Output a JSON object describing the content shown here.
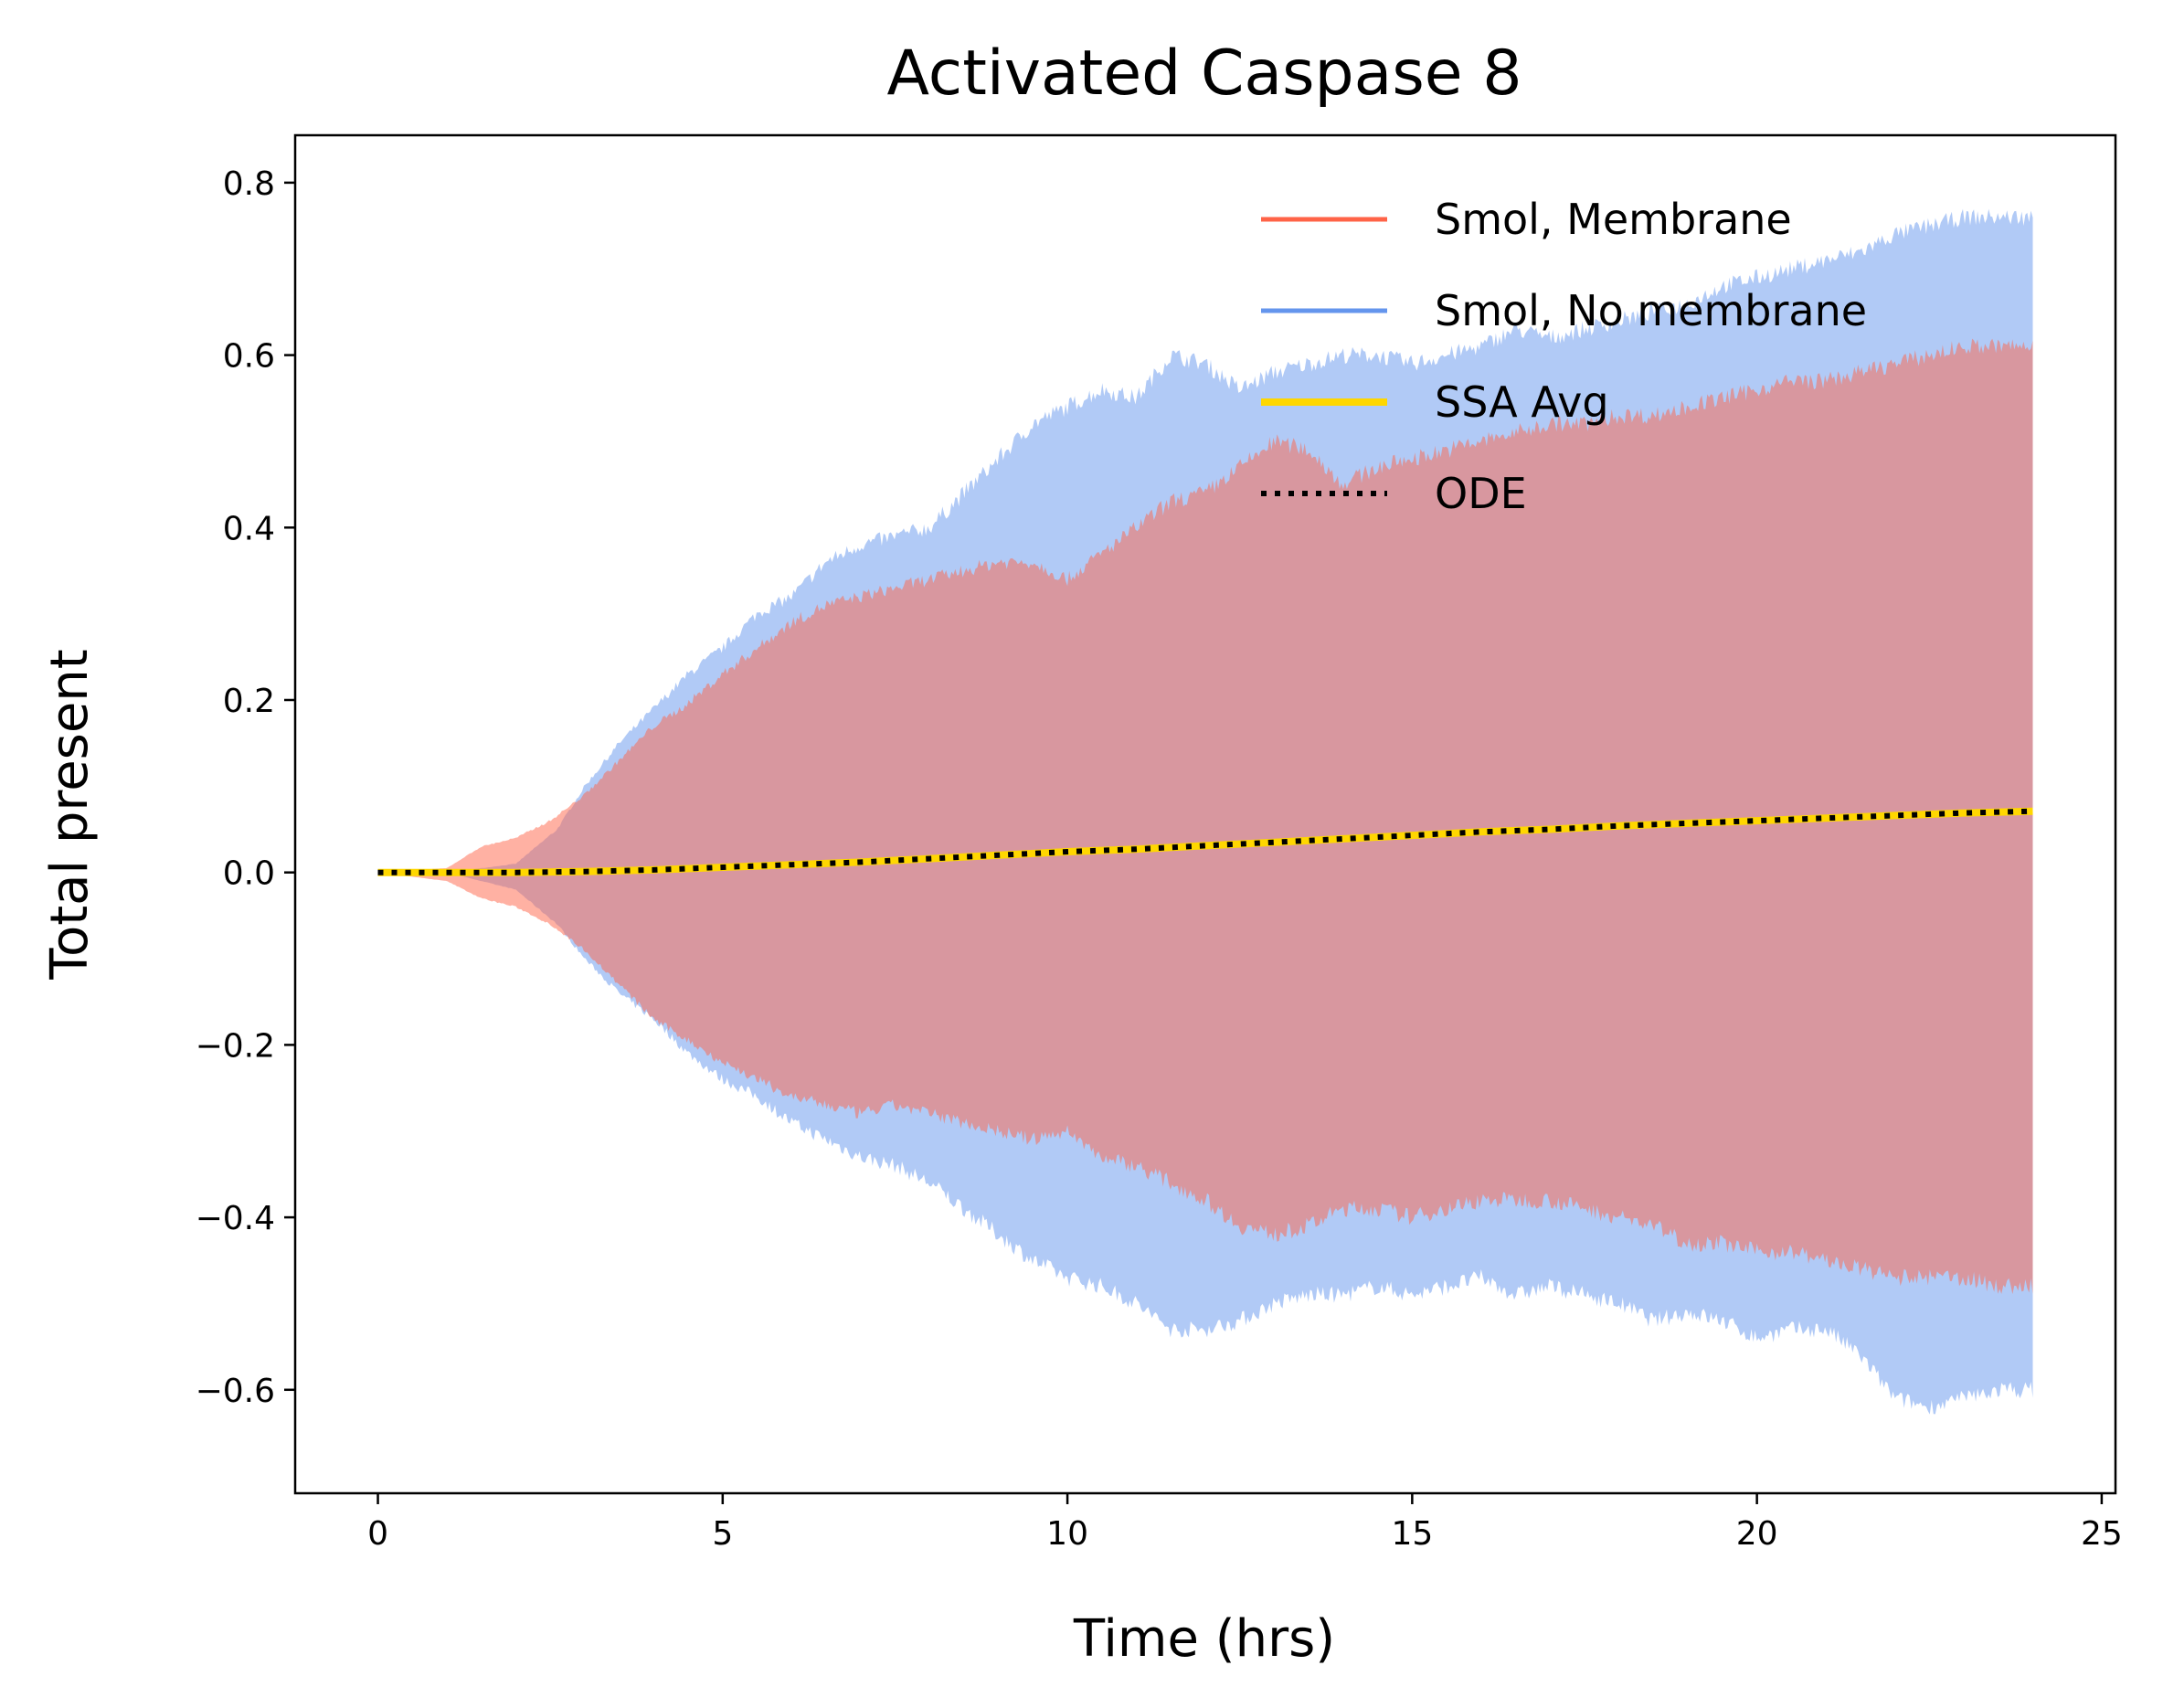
{
  "chart_data": {
    "type": "area",
    "title": "Activated Caspase 8",
    "xlabel": "Time (hrs)",
    "ylabel": "Total present",
    "xlim": [
      -1.2,
      25.2
    ],
    "ylim": [
      -0.72,
      0.855
    ],
    "x_ticks": [
      0,
      5,
      10,
      15,
      20,
      25
    ],
    "x_tick_labels": [
      "0",
      "5",
      "10",
      "15",
      "20",
      "25"
    ],
    "y_ticks": [
      -0.6,
      -0.4,
      -0.2,
      0.0,
      0.2,
      0.4,
      0.6,
      0.8
    ],
    "y_tick_labels": [
      "−0.6",
      "−0.4",
      "−0.2",
      "0.0",
      "0.2",
      "0.4",
      "0.6",
      "0.8"
    ],
    "grid": false,
    "legend_position": "top-right",
    "series": [
      {
        "name": "Smol, Membrane",
        "kind": "band",
        "color": "#FF6347",
        "x": [
          0,
          1,
          1.5,
          2,
          2.5,
          3,
          3.5,
          4,
          4.4,
          5,
          5.5,
          6,
          6.5,
          7,
          7.5,
          8,
          8.5,
          9,
          9.5,
          10,
          10.5,
          11,
          11.5,
          12,
          12.5,
          13,
          13.5,
          14,
          14.5,
          15,
          15.5,
          16,
          16.5,
          17,
          17.5,
          18,
          18.5,
          19,
          19.5,
          20,
          20.5,
          21,
          21.5,
          22,
          22.5,
          23,
          23.5,
          24
        ],
        "upper": [
          0,
          0.005,
          0.03,
          0.04,
          0.06,
          0.09,
          0.13,
          0.17,
          0.19,
          0.23,
          0.26,
          0.29,
          0.31,
          0.32,
          0.33,
          0.34,
          0.35,
          0.36,
          0.36,
          0.34,
          0.37,
          0.4,
          0.43,
          0.44,
          0.47,
          0.5,
          0.49,
          0.45,
          0.47,
          0.48,
          0.49,
          0.5,
          0.51,
          0.52,
          0.52,
          0.53,
          0.53,
          0.54,
          0.55,
          0.56,
          0.57,
          0.57,
          0.58,
          0.59,
          0.6,
          0.61,
          0.61,
          0.61
        ],
        "lower": [
          0,
          -0.01,
          -0.03,
          -0.04,
          -0.06,
          -0.09,
          -0.13,
          -0.17,
          -0.19,
          -0.22,
          -0.24,
          -0.26,
          -0.27,
          -0.28,
          -0.27,
          -0.28,
          -0.29,
          -0.3,
          -0.31,
          -0.3,
          -0.33,
          -0.34,
          -0.36,
          -0.38,
          -0.41,
          -0.42,
          -0.41,
          -0.39,
          -0.39,
          -0.4,
          -0.39,
          -0.38,
          -0.38,
          -0.38,
          -0.39,
          -0.4,
          -0.41,
          -0.43,
          -0.43,
          -0.44,
          -0.44,
          -0.45,
          -0.46,
          -0.47,
          -0.47,
          -0.47,
          -0.48,
          -0.48
        ]
      },
      {
        "name": "Smol, No membrane",
        "kind": "band",
        "color": "#6495ED",
        "x": [
          0,
          1,
          2,
          2.6,
          3,
          3.5,
          4,
          4.5,
          5,
          5.5,
          6,
          6.5,
          7,
          7.5,
          8,
          8.5,
          9,
          9.5,
          10,
          10.5,
          11,
          11.5,
          12,
          12.5,
          13,
          13.5,
          14,
          14.5,
          15,
          15.5,
          16,
          16.5,
          17,
          17.5,
          18,
          18.5,
          19,
          19.5,
          20,
          20.5,
          21,
          21.5,
          22,
          22.5,
          23,
          23.5,
          24
        ],
        "upper": [
          0,
          0,
          0.01,
          0.05,
          0.1,
          0.15,
          0.19,
          0.23,
          0.26,
          0.3,
          0.32,
          0.36,
          0.38,
          0.39,
          0.4,
          0.44,
          0.48,
          0.52,
          0.54,
          0.56,
          0.55,
          0.6,
          0.59,
          0.56,
          0.58,
          0.59,
          0.6,
          0.6,
          0.59,
          0.6,
          0.61,
          0.63,
          0.62,
          0.63,
          0.64,
          0.65,
          0.66,
          0.68,
          0.69,
          0.7,
          0.71,
          0.72,
          0.74,
          0.75,
          0.76,
          0.76,
          0.76
        ],
        "lower": [
          0,
          0,
          -0.02,
          -0.06,
          -0.1,
          -0.14,
          -0.17,
          -0.21,
          -0.24,
          -0.26,
          -0.29,
          -0.31,
          -0.33,
          -0.34,
          -0.36,
          -0.39,
          -0.42,
          -0.45,
          -0.47,
          -0.48,
          -0.5,
          -0.53,
          -0.53,
          -0.52,
          -0.5,
          -0.49,
          -0.49,
          -0.48,
          -0.49,
          -0.48,
          -0.47,
          -0.49,
          -0.48,
          -0.49,
          -0.5,
          -0.52,
          -0.51,
          -0.52,
          -0.54,
          -0.53,
          -0.53,
          -0.56,
          -0.61,
          -0.62,
          -0.61,
          -0.6,
          -0.6
        ]
      },
      {
        "name": "SSA Avg",
        "kind": "line",
        "color": "#FFD700",
        "x": [
          0,
          1,
          2,
          3,
          4,
          5,
          6,
          7,
          8,
          9,
          10,
          11,
          12,
          13,
          14,
          15,
          16,
          17,
          18,
          19,
          20,
          21,
          22,
          23,
          24
        ],
        "y": [
          0,
          0,
          0,
          0.001,
          0.003,
          0.006,
          0.009,
          0.012,
          0.016,
          0.02,
          0.024,
          0.027,
          0.031,
          0.035,
          0.039,
          0.043,
          0.047,
          0.05,
          0.054,
          0.057,
          0.06,
          0.063,
          0.066,
          0.069,
          0.071
        ]
      },
      {
        "name": "ODE",
        "kind": "line",
        "color": "#000000",
        "x": [
          0,
          1,
          2,
          3,
          4,
          5,
          6,
          7,
          8,
          9,
          10,
          11,
          12,
          13,
          14,
          15,
          16,
          17,
          18,
          19,
          20,
          21,
          22,
          23,
          24
        ],
        "y": [
          0,
          0,
          0,
          0.001,
          0.003,
          0.006,
          0.009,
          0.012,
          0.016,
          0.02,
          0.024,
          0.027,
          0.031,
          0.035,
          0.039,
          0.043,
          0.047,
          0.05,
          0.054,
          0.057,
          0.06,
          0.063,
          0.066,
          0.069,
          0.071
        ]
      }
    ]
  }
}
